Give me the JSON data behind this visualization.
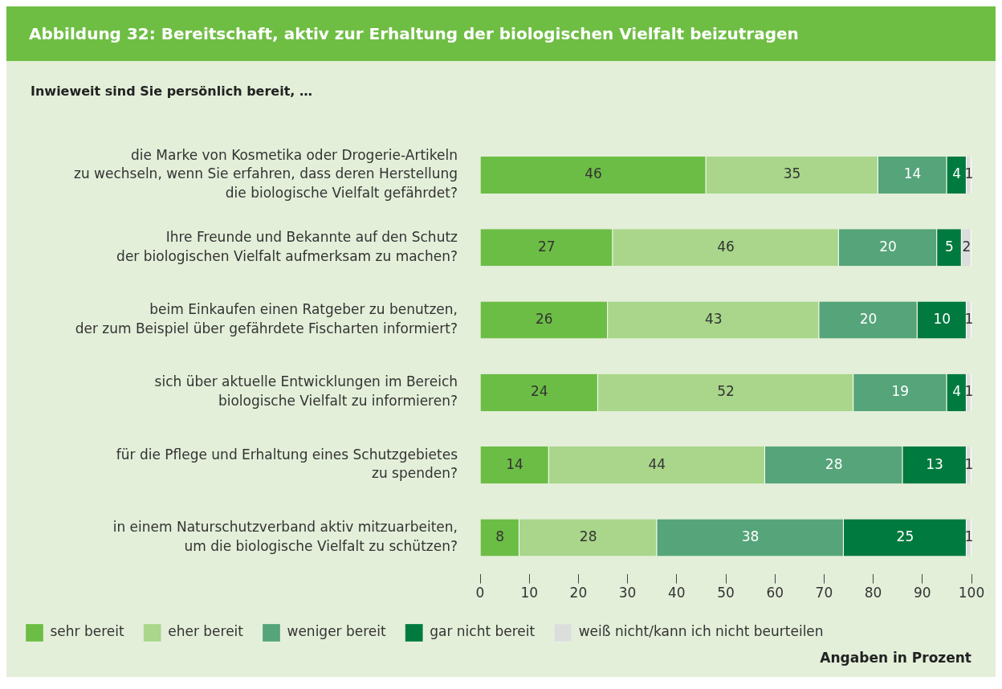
{
  "chart_data": {
    "type": "bar",
    "orientation": "horizontal",
    "stacked": true,
    "title": "Abbildung 32: Bereitschaft, aktiv zur Erhaltung der biologischen Vielfalt beizutragen",
    "subtitle": "Inwieweit sind Sie persönlich bereit, …",
    "categories": [
      "die Marke von Kosmetika oder Drogerie-Artikeln\nzu wechseln, wenn Sie erfahren, dass deren Herstellung\ndie biologische Vielfalt gefährdet?",
      "Ihre Freunde und Bekannte auf den Schutz\nder biologischen Vielfalt aufmerksam zu machen?",
      "beim Einkaufen einen Ratgeber zu benutzen,\nder zum Beispiel über gefährdete Fischarten informiert?",
      "sich über aktuelle Entwicklungen im Bereich\nbiologische Vielfalt zu informieren?",
      "für die Pflege und Erhaltung eines Schutzgebietes\nzu spenden?",
      "in einem Naturschutzverband aktiv mitzuarbeiten,\num die biologische Vielfalt zu schützen?"
    ],
    "series": [
      {
        "name": "sehr bereit",
        "color": "#6cbd45",
        "values": [
          46,
          27,
          26,
          24,
          14,
          8
        ]
      },
      {
        "name": "eher bereit",
        "color": "#a9d68a",
        "values": [
          35,
          46,
          43,
          52,
          44,
          28
        ]
      },
      {
        "name": "weniger bereit",
        "color": "#55a47a",
        "values": [
          14,
          20,
          20,
          19,
          28,
          38
        ]
      },
      {
        "name": "gar nicht bereit",
        "color": "#007a3e",
        "values": [
          4,
          5,
          10,
          4,
          13,
          25
        ]
      },
      {
        "name": "weiß nicht/kann ich nicht beurteilen",
        "color": "#dcdedc",
        "values": [
          1,
          2,
          1,
          1,
          1,
          1
        ]
      }
    ],
    "xlim": [
      0,
      100
    ],
    "xticks": [
      0,
      10,
      20,
      30,
      40,
      50,
      60,
      70,
      80,
      90,
      100
    ],
    "data_labels": true,
    "legend": "bottom",
    "grid": false,
    "annotations": [
      "Angaben in Prozent"
    ]
  }
}
